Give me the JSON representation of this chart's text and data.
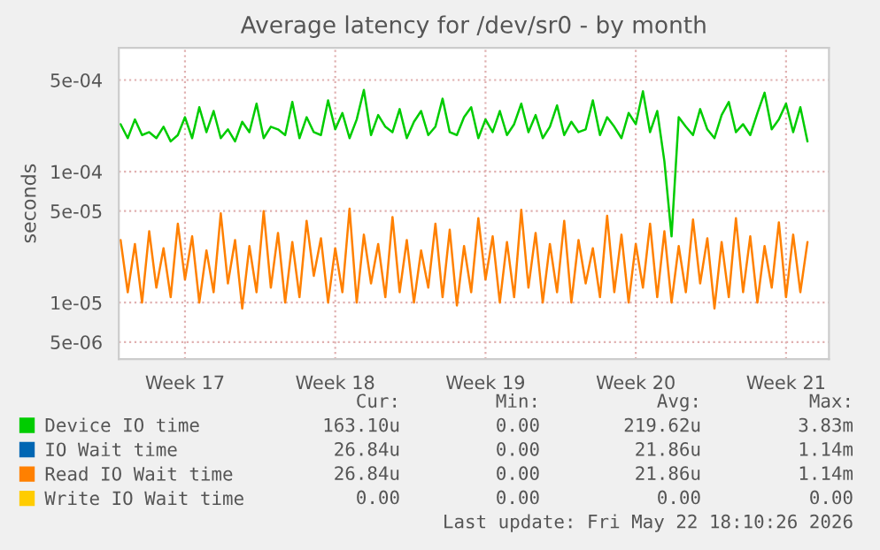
{
  "chart_data": {
    "type": "line",
    "title": "Average latency for /dev/sr0 - by month",
    "ylabel": "seconds",
    "log": "y",
    "grid": true,
    "legend": "bottom",
    "line_style": "solid",
    "marker": "none",
    "ylim": [
      3.7e-06,
      0.00088
    ],
    "yticks": [
      {
        "value": 5e-06,
        "label": "5e-06"
      },
      {
        "value": 1e-05,
        "label": "1e-05"
      },
      {
        "value": 5e-05,
        "label": "5e-05"
      },
      {
        "value": 0.0001,
        "label": "1e-04"
      },
      {
        "value": 0.0005,
        "label": "5e-04"
      }
    ],
    "xlim": [
      "2026-04-20T10:00",
      "2026-05-23T12:00"
    ],
    "xticks": [
      {
        "value": "2026-04-23T12:00",
        "label": "Week 17"
      },
      {
        "value": "2026-04-30T12:00",
        "label": "Week 18"
      },
      {
        "value": "2026-05-07T12:00",
        "label": "Week 19"
      },
      {
        "value": "2026-05-14T12:00",
        "label": "Week 20"
      },
      {
        "value": "2026-05-21T12:00",
        "label": "Week 21"
      }
    ],
    "x": [
      "2026-04-20T12:00",
      "2026-04-20T20:00",
      "2026-04-21T04:00",
      "2026-04-21T12:00",
      "2026-04-21T20:00",
      "2026-04-22T04:00",
      "2026-04-22T12:00",
      "2026-04-22T20:00",
      "2026-04-23T04:00",
      "2026-04-23T12:00",
      "2026-04-23T20:00",
      "2026-04-24T04:00",
      "2026-04-24T12:00",
      "2026-04-24T20:00",
      "2026-04-25T04:00",
      "2026-04-25T12:00",
      "2026-04-25T20:00",
      "2026-04-26T04:00",
      "2026-04-26T12:00",
      "2026-04-26T20:00",
      "2026-04-27T04:00",
      "2026-04-27T12:00",
      "2026-04-27T20:00",
      "2026-04-28T04:00",
      "2026-04-28T12:00",
      "2026-04-28T20:00",
      "2026-04-29T04:00",
      "2026-04-29T12:00",
      "2026-04-29T20:00",
      "2026-04-30T04:00",
      "2026-04-30T12:00",
      "2026-04-30T20:00",
      "2026-05-01T04:00",
      "2026-05-01T12:00",
      "2026-05-01T20:00",
      "2026-05-02T04:00",
      "2026-05-02T12:00",
      "2026-05-02T20:00",
      "2026-05-03T04:00",
      "2026-05-03T12:00",
      "2026-05-03T20:00",
      "2026-05-04T04:00",
      "2026-05-04T12:00",
      "2026-05-04T20:00",
      "2026-05-05T04:00",
      "2026-05-05T12:00",
      "2026-05-05T20:00",
      "2026-05-06T04:00",
      "2026-05-06T12:00",
      "2026-05-06T20:00",
      "2026-05-07T04:00",
      "2026-05-07T12:00",
      "2026-05-07T20:00",
      "2026-05-08T04:00",
      "2026-05-08T12:00",
      "2026-05-08T20:00",
      "2026-05-09T04:00",
      "2026-05-09T12:00",
      "2026-05-09T20:00",
      "2026-05-10T04:00",
      "2026-05-10T12:00",
      "2026-05-10T20:00",
      "2026-05-11T04:00",
      "2026-05-11T12:00",
      "2026-05-11T20:00",
      "2026-05-12T04:00",
      "2026-05-12T12:00",
      "2026-05-12T20:00",
      "2026-05-13T04:00",
      "2026-05-13T12:00",
      "2026-05-13T20:00",
      "2026-05-14T04:00",
      "2026-05-14T12:00",
      "2026-05-14T20:00",
      "2026-05-15T04:00",
      "2026-05-15T12:00",
      "2026-05-15T20:00",
      "2026-05-16T04:00",
      "2026-05-16T12:00",
      "2026-05-16T20:00",
      "2026-05-17T04:00",
      "2026-05-17T12:00",
      "2026-05-17T20:00",
      "2026-05-18T04:00",
      "2026-05-18T12:00",
      "2026-05-18T20:00",
      "2026-05-19T04:00",
      "2026-05-19T12:00",
      "2026-05-19T20:00",
      "2026-05-20T04:00",
      "2026-05-20T12:00",
      "2026-05-20T20:00",
      "2026-05-21T04:00",
      "2026-05-21T12:00",
      "2026-05-21T20:00",
      "2026-05-22T04:00",
      "2026-05-22T12:00"
    ],
    "series": [
      {
        "name": "Device IO time",
        "color": "#00cc00",
        "values": [
          0.00023,
          0.00018,
          0.00025,
          0.00019,
          0.0002,
          0.00018,
          0.00022,
          0.00017,
          0.00019,
          0.00026,
          0.00018,
          0.00031,
          0.0002,
          0.00029,
          0.00018,
          0.00021,
          0.00017,
          0.00024,
          0.0002,
          0.00033,
          0.00018,
          0.00022,
          0.00021,
          0.00019,
          0.00034,
          0.00018,
          0.00026,
          0.0002,
          0.00019,
          0.00035,
          0.00021,
          0.00028,
          0.00018,
          0.00025,
          0.00042,
          0.00019,
          0.00027,
          0.00022,
          0.0002,
          0.0003,
          0.00018,
          0.00024,
          0.00029,
          0.00019,
          0.00022,
          0.00036,
          0.0002,
          0.00019,
          0.00026,
          0.00031,
          0.00018,
          0.00025,
          0.0002,
          0.00029,
          0.00019,
          0.00023,
          0.00033,
          0.0002,
          0.00027,
          0.00018,
          0.00022,
          0.00032,
          0.00019,
          0.00024,
          0.0002,
          0.00021,
          0.00035,
          0.00019,
          0.00026,
          0.00022,
          0.00018,
          0.00028,
          0.00023,
          0.00041,
          0.0002,
          0.00029,
          0.00012,
          3.2e-05,
          0.00026,
          0.00022,
          0.00019,
          0.0003,
          0.00021,
          0.00018,
          0.00027,
          0.00034,
          0.0002,
          0.00023,
          0.00019,
          0.00028,
          0.0004,
          0.00021,
          0.00025,
          0.00033,
          0.0002,
          0.00031,
          0.00017
        ]
      },
      {
        "name": "IO Wait time",
        "color": "#0066b3",
        "values": [
          null,
          null,
          null,
          null,
          null,
          null,
          null,
          null,
          null,
          null,
          null,
          null,
          null,
          null,
          null,
          null,
          null,
          null,
          null,
          null,
          null,
          null,
          null,
          null,
          null,
          null,
          null,
          null,
          null,
          null,
          null,
          null,
          null,
          null,
          null,
          null,
          null,
          null,
          null,
          null,
          null,
          null,
          null,
          null,
          null,
          null,
          null,
          null,
          null,
          null,
          null,
          null,
          null,
          null,
          null,
          null,
          null,
          null,
          null,
          null,
          null,
          null,
          null,
          null,
          null,
          null,
          null,
          null,
          null,
          null,
          null,
          null,
          null,
          null,
          null,
          null,
          null,
          null,
          null,
          null,
          null,
          null,
          null,
          null,
          null,
          null,
          null,
          null,
          null,
          null,
          null,
          null,
          null,
          null,
          null,
          null,
          null
        ]
      },
      {
        "name": "Read IO Wait time",
        "color": "#ff8000",
        "values": [
          3e-05,
          1.2e-05,
          2.8e-05,
          1e-05,
          3.5e-05,
          1.3e-05,
          2.6e-05,
          1.1e-05,
          4e-05,
          1.5e-05,
          3.2e-05,
          1e-05,
          2.5e-05,
          1.2e-05,
          4.8e-05,
          1.4e-05,
          3e-05,
          9e-06,
          2.7e-05,
          1.2e-05,
          5e-05,
          1.3e-05,
          3.4e-05,
          1e-05,
          2.9e-05,
          1.1e-05,
          4.2e-05,
          1.6e-05,
          3.1e-05,
          1e-05,
          2.6e-05,
          1.2e-05,
          5.2e-05,
          1e-05,
          3.3e-05,
          1.4e-05,
          2.8e-05,
          1.1e-05,
          4.5e-05,
          1.2e-05,
          3e-05,
          1e-05,
          2.5e-05,
          1.3e-05,
          4e-05,
          1.1e-05,
          3.6e-05,
          9.5e-06,
          2.7e-05,
          1.2e-05,
          4.4e-05,
          1.5e-05,
          3.2e-05,
          1e-05,
          2.9e-05,
          1.1e-05,
          5.1e-05,
          1.3e-05,
          3.4e-05,
          1e-05,
          2.8e-05,
          1.2e-05,
          4.2e-05,
          1e-05,
          3e-05,
          1.4e-05,
          2.6e-05,
          1.1e-05,
          4.6e-05,
          1.2e-05,
          3.3e-05,
          1e-05,
          2.8e-05,
          1.3e-05,
          4e-05,
          1.1e-05,
          3.5e-05,
          1e-05,
          2.7e-05,
          1.2e-05,
          4.3e-05,
          1.4e-05,
          3.1e-05,
          9e-06,
          2.9e-05,
          1.1e-05,
          4.4e-05,
          1.2e-05,
          3.2e-05,
          1e-05,
          2.7e-05,
          1.3e-05,
          4.1e-05,
          1.1e-05,
          3.3e-05,
          1.2e-05,
          2.9e-05
        ]
      },
      {
        "name": "Write IO Wait time",
        "color": "#ffcc00",
        "values": [
          null,
          null,
          null,
          null,
          null,
          null,
          null,
          null,
          null,
          null,
          null,
          null,
          null,
          null,
          null,
          null,
          null,
          null,
          null,
          null,
          null,
          null,
          null,
          null,
          null,
          null,
          null,
          null,
          null,
          null,
          null,
          null,
          null,
          null,
          null,
          null,
          null,
          null,
          null,
          null,
          null,
          null,
          null,
          null,
          null,
          null,
          null,
          null,
          null,
          null,
          null,
          null,
          null,
          null,
          null,
          null,
          null,
          null,
          null,
          null,
          null,
          null,
          null,
          null,
          null,
          null,
          null,
          null,
          null,
          null,
          null,
          null,
          null,
          null,
          null,
          null,
          null,
          null,
          null,
          null,
          null,
          null,
          null,
          null,
          null,
          null,
          null,
          null,
          null,
          null,
          null,
          null,
          null,
          null,
          null,
          null,
          null
        ]
      }
    ],
    "annotations": [
      "Cur:",
      "Min:",
      "Avg:",
      "Max:",
      "163.10u",
      "0.00",
      "219.62u",
      "3.83m",
      "26.84u",
      "0.00",
      "21.86u",
      "1.14m",
      "26.84u",
      "0.00",
      "21.86u",
      "1.14m",
      "0.00",
      "0.00",
      "0.00",
      "0.00",
      "Last update: Fri May 22 18:10:26 2026"
    ]
  }
}
